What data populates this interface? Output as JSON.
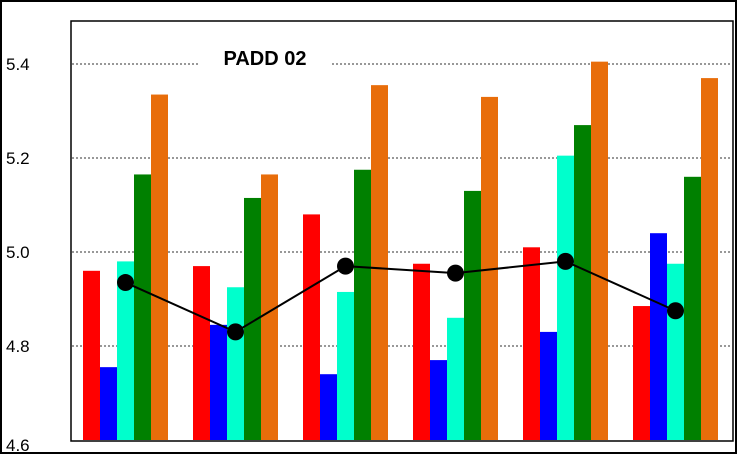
{
  "chart_data": {
    "type": "bar",
    "title": "PADD 02",
    "xlabel": "",
    "ylabel": "",
    "ylim": [
      4.6,
      5.5
    ],
    "yticks": [
      "4.6",
      "4.8",
      "5.0",
      "5.2",
      "5.4"
    ],
    "grid": "horizontal dotted",
    "categories": [
      "",
      "",
      "",
      "",
      "",
      ""
    ],
    "series": [
      {
        "color": "#ff0000",
        "values": [
          4.96,
          4.97,
          5.08,
          4.975,
          5.01,
          4.885
        ]
      },
      {
        "color": "#0000ff",
        "values": [
          4.755,
          4.845,
          4.74,
          4.77,
          4.83,
          5.04
        ]
      },
      {
        "color": "#00ffcc",
        "values": [
          4.98,
          4.925,
          4.915,
          4.86,
          5.205,
          4.975
        ]
      },
      {
        "color": "#008000",
        "values": [
          5.165,
          5.115,
          5.175,
          5.13,
          5.27,
          5.16
        ]
      },
      {
        "color": "#e86d0a",
        "values": [
          5.335,
          5.165,
          5.355,
          5.33,
          5.405,
          5.37
        ]
      }
    ],
    "line_series": {
      "color": "#000000",
      "values": [
        4.935,
        4.83,
        4.97,
        4.955,
        4.98,
        4.875
      ]
    }
  }
}
